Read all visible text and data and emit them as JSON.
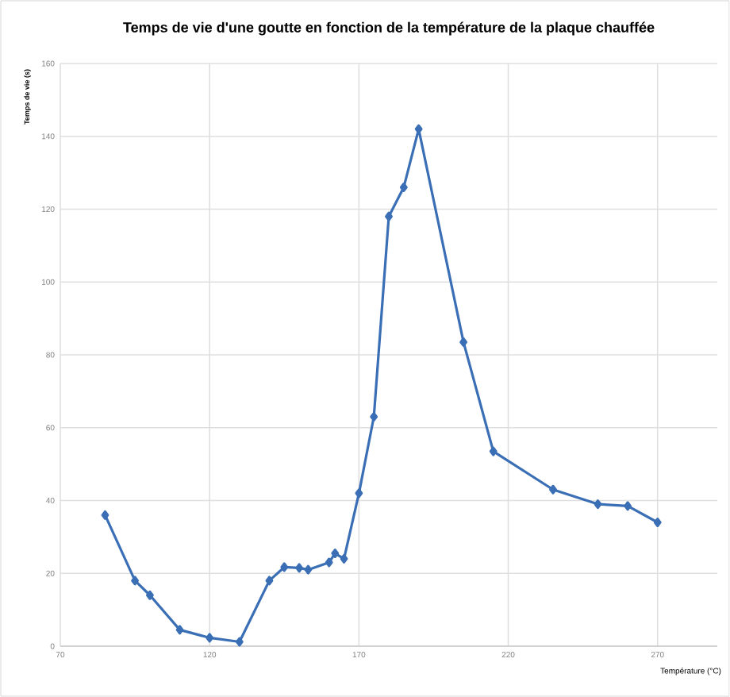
{
  "chart_data": {
    "type": "line",
    "title": "Temps de vie d'une goutte en fonction de la température de la plaque chauffée",
    "xlabel": "Température (°C)",
    "ylabel": "Temps de vie (s)",
    "x": [
      85,
      95,
      100,
      110,
      120,
      130,
      140,
      145,
      150,
      153,
      160,
      162,
      165,
      170,
      175,
      180,
      185,
      190,
      205,
      215,
      235,
      250,
      260,
      270
    ],
    "series": [
      {
        "color": "#3a6eb5",
        "values": [
          36,
          18,
          14,
          4.5,
          2.3,
          1.2,
          18,
          21.7,
          21.5,
          21,
          23,
          25.5,
          24,
          42,
          63,
          118,
          126,
          142,
          83.5,
          53.5,
          43,
          39,
          38.5,
          34
        ]
      }
    ],
    "xlim": [
      70,
      290
    ],
    "xticks": [
      70,
      120,
      170,
      220,
      270
    ],
    "ylim": [
      0,
      160
    ],
    "yticks": [
      0,
      20,
      40,
      60,
      80,
      100,
      120,
      140,
      160
    ],
    "grid": true,
    "marker": "diamond",
    "line_style": "solid"
  }
}
